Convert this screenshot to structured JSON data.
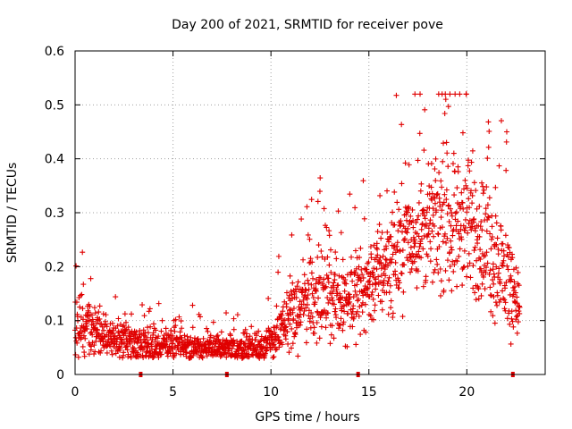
{
  "chart_data": {
    "type": "scatter",
    "title": "Day 200 of 2021, SRMTID for receiver pove",
    "xlabel": "GPS time / hours",
    "ylabel": "SRMTID / TECUs",
    "xlim": [
      0,
      24
    ],
    "ylim": [
      0,
      0.6
    ],
    "xticks": [
      0,
      5,
      10,
      15,
      20
    ],
    "yticks": [
      0,
      0.1,
      0.2,
      0.3,
      0.4,
      0.5,
      0.6
    ],
    "xtick_labels": [
      "0",
      "5",
      "10",
      "15",
      "20"
    ],
    "ytick_labels": [
      "0",
      "0.1",
      "0.2",
      "0.3",
      "0.4",
      "0.5",
      "0.6"
    ],
    "grid": true,
    "marker": "+",
    "series_color": "#e00000",
    "trend": [
      {
        "hour": 0.0,
        "median": 0.085,
        "spread": 0.035
      },
      {
        "hour": 1.0,
        "median": 0.085,
        "spread": 0.03
      },
      {
        "hour": 2.0,
        "median": 0.065,
        "spread": 0.025
      },
      {
        "hour": 3.0,
        "median": 0.06,
        "spread": 0.025
      },
      {
        "hour": 4.0,
        "median": 0.05,
        "spread": 0.02
      },
      {
        "hour": 5.0,
        "median": 0.055,
        "spread": 0.02
      },
      {
        "hour": 6.0,
        "median": 0.05,
        "spread": 0.02
      },
      {
        "hour": 7.0,
        "median": 0.05,
        "spread": 0.02
      },
      {
        "hour": 8.0,
        "median": 0.045,
        "spread": 0.02
      },
      {
        "hour": 9.0,
        "median": 0.05,
        "spread": 0.02
      },
      {
        "hour": 10.0,
        "median": 0.06,
        "spread": 0.025
      },
      {
        "hour": 11.0,
        "median": 0.1,
        "spread": 0.04
      },
      {
        "hour": 12.0,
        "median": 0.15,
        "spread": 0.06
      },
      {
        "hour": 13.0,
        "median": 0.14,
        "spread": 0.05
      },
      {
        "hour": 14.0,
        "median": 0.14,
        "spread": 0.05
      },
      {
        "hour": 15.0,
        "median": 0.17,
        "spread": 0.06
      },
      {
        "hour": 16.0,
        "median": 0.21,
        "spread": 0.07
      },
      {
        "hour": 17.0,
        "median": 0.25,
        "spread": 0.07
      },
      {
        "hour": 18.0,
        "median": 0.27,
        "spread": 0.07
      },
      {
        "hour": 19.0,
        "median": 0.29,
        "spread": 0.09
      },
      {
        "hour": 20.0,
        "median": 0.27,
        "spread": 0.09
      },
      {
        "hour": 21.0,
        "median": 0.24,
        "spread": 0.08
      },
      {
        "hour": 22.0,
        "median": 0.18,
        "spread": 0.08
      },
      {
        "hour": 22.7,
        "median": 0.13,
        "spread": 0.04
      }
    ],
    "data_gaps_hours": [
      3.35,
      7.75,
      14.45,
      22.35
    ]
  }
}
